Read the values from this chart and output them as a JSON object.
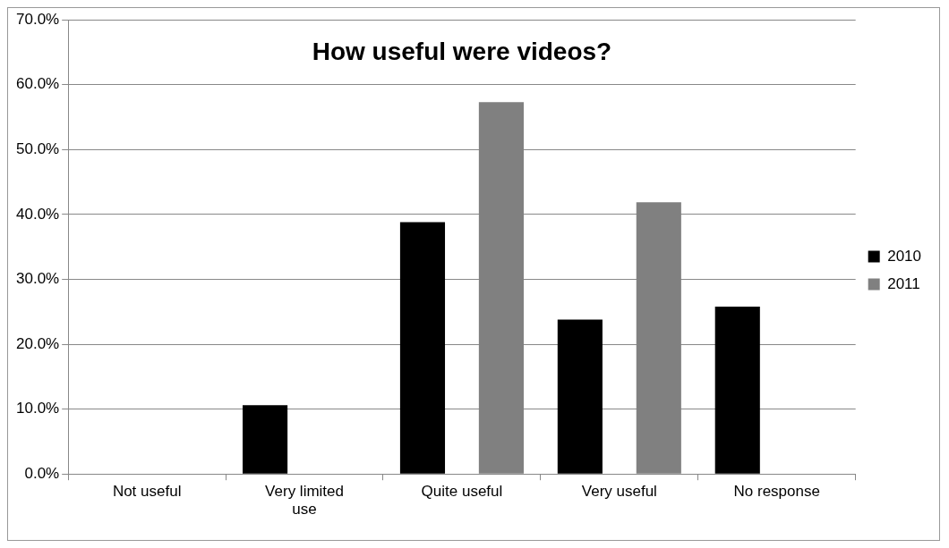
{
  "chart_data": {
    "type": "bar",
    "title": "How useful were videos?",
    "categories": [
      "Not useful",
      "Very limited use",
      "Quite useful",
      "Very useful",
      "No response"
    ],
    "series": [
      {
        "name": "2010",
        "color": "#000000",
        "values": [
          0,
          10.6,
          38.8,
          23.8,
          25.8
        ]
      },
      {
        "name": "2011",
        "color": "#808080",
        "values": [
          0,
          0,
          57.3,
          41.9,
          0
        ]
      }
    ],
    "ylim": [
      0,
      70
    ],
    "yticks": [
      {
        "value": 0,
        "label": "0.0%"
      },
      {
        "value": 10,
        "label": "10.0%"
      },
      {
        "value": 20,
        "label": "20.0%"
      },
      {
        "value": 30,
        "label": "30.0%"
      },
      {
        "value": 40,
        "label": "40.0%"
      },
      {
        "value": 50,
        "label": "50.0%"
      },
      {
        "value": 60,
        "label": "60.0%"
      },
      {
        "value": 70,
        "label": "70.0%"
      }
    ],
    "grid": "y",
    "legend": "right"
  }
}
